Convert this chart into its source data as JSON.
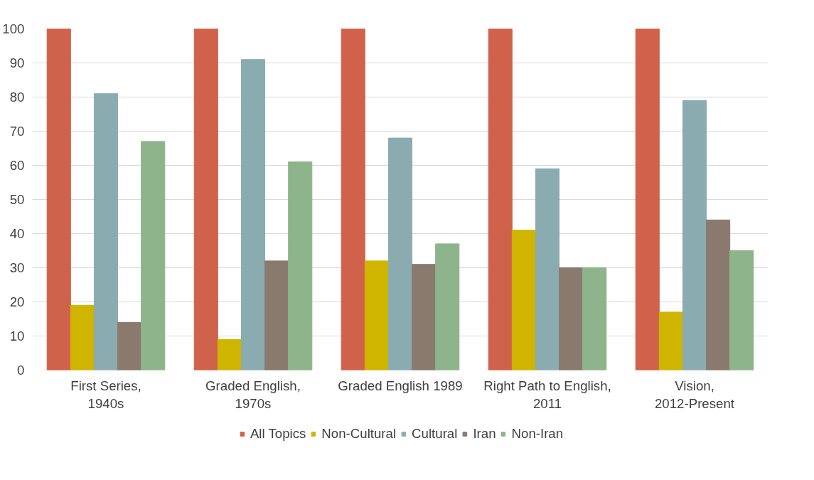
{
  "chart_data": {
    "type": "bar",
    "categories": [
      "First Series, 1940s",
      "Graded English, 1970s",
      "Graded English 1989",
      "Right Path to English, 2011",
      "Vision, 2012-Present"
    ],
    "series": [
      {
        "name": "All Topics",
        "color": "#d0614a",
        "values": [
          100,
          100,
          100,
          100,
          100
        ]
      },
      {
        "name": "Non-Cultural",
        "color": "#cfb400",
        "values": [
          19,
          9,
          32,
          41,
          17
        ]
      },
      {
        "name": "Cultural",
        "color": "#8aacb0",
        "values": [
          81,
          91,
          68,
          59,
          79
        ]
      },
      {
        "name": "Iran",
        "color": "#8a7a6e",
        "values": [
          14,
          32,
          31,
          30,
          44
        ]
      },
      {
        "name": "Non-Iran",
        "color": "#8db48a",
        "values": [
          67,
          61,
          37,
          30,
          35
        ]
      }
    ],
    "ylim": [
      0,
      100
    ],
    "yticks": [
      0,
      10,
      20,
      30,
      40,
      50,
      60,
      70,
      80,
      90,
      100
    ],
    "grid": "y",
    "legend": "bottom"
  }
}
